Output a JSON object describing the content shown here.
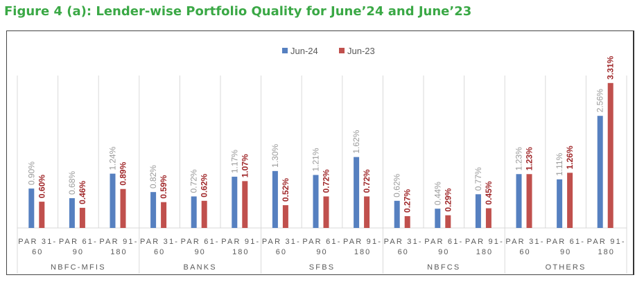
{
  "title": "Figure 4 (a): Lender-wise Portfolio Quality for June’24 and June’23",
  "chart_data": {
    "type": "bar",
    "title": "Figure 4 (a): Lender-wise Portfolio Quality for June’24 and June’23",
    "groups": [
      "NBFC-MFIS",
      "BANKS",
      "SFBS",
      "NBFCS",
      "OTHERS"
    ],
    "subcategories": [
      [
        "PAR 31-",
        "60"
      ],
      [
        "PAR 61-",
        "90"
      ],
      [
        "PAR  91-",
        "180"
      ]
    ],
    "series": [
      {
        "name": "Jun-24",
        "color": "#5680c0",
        "label_color": "#9a9a9a",
        "values": [
          0.9,
          0.68,
          1.24,
          0.82,
          0.72,
          1.17,
          1.3,
          1.21,
          1.62,
          0.62,
          0.44,
          0.77,
          1.23,
          1.11,
          2.56
        ],
        "labels": [
          "0.90%",
          "0.68%",
          "1.24%",
          "0.82%",
          "0.72%",
          "1.17%",
          "1.30%",
          "1.21%",
          "1.62%",
          "0.62%",
          "0.44%",
          "0.77%",
          "1.23%",
          "1.11%",
          "2.56%"
        ]
      },
      {
        "name": "Jun-23",
        "color": "#c0504d",
        "label_color": "#a0282a",
        "values": [
          0.6,
          0.46,
          0.89,
          0.59,
          0.62,
          1.07,
          0.52,
          0.72,
          0.72,
          0.27,
          0.29,
          0.45,
          1.23,
          1.26,
          3.31
        ],
        "labels": [
          "0.60%",
          "0.46%",
          "0.89%",
          "0.59%",
          "0.62%",
          "1.07%",
          "0.52%",
          "0.72%",
          "0.72%",
          "0.27%",
          "0.29%",
          "0.45%",
          "1.23%",
          "1.26%",
          "3.31%"
        ]
      }
    ],
    "ylim": [
      0,
      3.5
    ],
    "legend": "top-center",
    "grid": false
  }
}
